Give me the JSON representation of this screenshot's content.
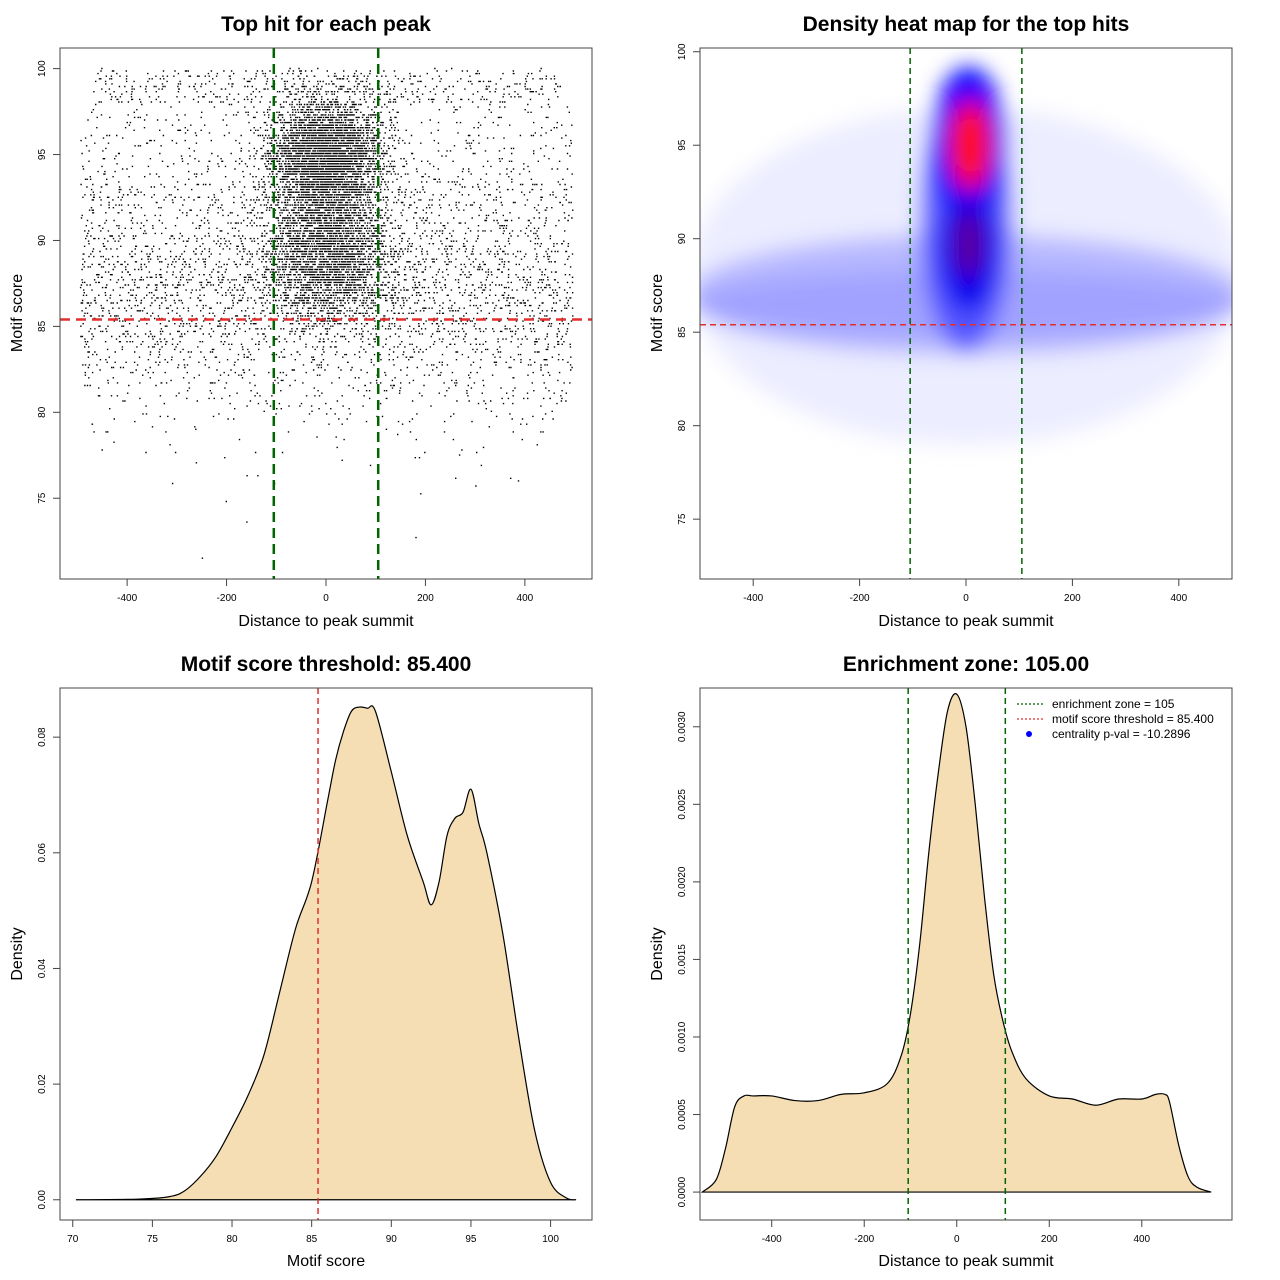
{
  "colors": {
    "threshold_line": "#e03030",
    "zone_line": "#006400",
    "density_fill": "#f5deb3",
    "points": "#000000",
    "heat_low": "#ffffff",
    "heat_mid": "#0000ff",
    "heat_high": "#ff0000",
    "legend_marker": "#0000ff"
  },
  "chart_data": [
    {
      "id": "scatter",
      "type": "scatter",
      "title": "Top hit for each peak",
      "xlabel": "Distance to peak summit",
      "ylabel": "Motif score",
      "xlim": [
        -535,
        535
      ],
      "ylim": [
        70.3,
        101.2
      ],
      "xticks": [
        -400,
        -200,
        0,
        200,
        400
      ],
      "yticks": [
        75,
        80,
        85,
        90,
        95,
        100
      ],
      "xtick_labels": [
        "-400",
        "-200",
        "0",
        "200",
        "400"
      ],
      "ytick_labels": [
        "75",
        "80",
        "85",
        "90",
        "95",
        "100"
      ],
      "threshold": 85.4,
      "enrichment_zone": [
        -105,
        105
      ],
      "grid": false
    },
    {
      "id": "heatmap",
      "type": "heatmap",
      "title": "Density heat map for the top hits",
      "xlabel": "Distance to peak summit",
      "ylabel": "Motif score",
      "xlim": [
        -500,
        500
      ],
      "ylim": [
        71.8,
        100.2
      ],
      "xticks": [
        -400,
        -200,
        0,
        200,
        400
      ],
      "yticks": [
        75,
        80,
        85,
        90,
        95,
        100
      ],
      "xtick_labels": [
        "-400",
        "-200",
        "0",
        "200",
        "400"
      ],
      "ytick_labels": [
        "75",
        "80",
        "85",
        "90",
        "95",
        "100"
      ],
      "threshold": 85.4,
      "enrichment_zone": [
        -105,
        105
      ],
      "grid": false
    },
    {
      "id": "score_density",
      "type": "area",
      "title": "Motif score threshold: 85.400",
      "xlabel": "Motif score",
      "ylabel": "Density",
      "xlim": [
        69.2,
        102.6
      ],
      "ylim": [
        -0.0035,
        0.0885
      ],
      "xticks": [
        70,
        75,
        80,
        85,
        90,
        95,
        100
      ],
      "yticks": [
        0,
        0.02,
        0.04,
        0.06,
        0.08
      ],
      "xtick_labels": [
        "70",
        "75",
        "80",
        "85",
        "90",
        "95",
        "100"
      ],
      "ytick_labels": [
        "0.00",
        "0.02",
        "0.04",
        "0.06",
        "0.08"
      ],
      "threshold": 85.4,
      "x": [
        70.2,
        74,
        76,
        77,
        78,
        79,
        80,
        81,
        82,
        83,
        84,
        85,
        86,
        86.5,
        87,
        87.5,
        88,
        88.5,
        89,
        90,
        91,
        92,
        92.5,
        93,
        93.5,
        94,
        94.5,
        95,
        95.5,
        96,
        97,
        98,
        99,
        100,
        101,
        101.6
      ],
      "y": [
        0.0,
        0.0001,
        0.0005,
        0.0015,
        0.004,
        0.0075,
        0.0125,
        0.018,
        0.025,
        0.036,
        0.047,
        0.055,
        0.069,
        0.076,
        0.081,
        0.0845,
        0.0852,
        0.085,
        0.0845,
        0.074,
        0.063,
        0.055,
        0.051,
        0.055,
        0.063,
        0.066,
        0.067,
        0.071,
        0.065,
        0.06,
        0.046,
        0.028,
        0.012,
        0.003,
        0.0003,
        0.0
      ]
    },
    {
      "id": "position_density",
      "type": "area",
      "title": "Enrichment zone: 105.00",
      "xlabel": "Distance to peak summit",
      "ylabel": "Density",
      "xlim": [
        -555,
        595
      ],
      "ylim": [
        -0.00018,
        0.00325
      ],
      "xticks": [
        -400,
        -200,
        0,
        200,
        400
      ],
      "yticks": [
        0,
        0.0005,
        0.001,
        0.0015,
        0.002,
        0.0025,
        0.003
      ],
      "xtick_labels": [
        "-400",
        "-200",
        "0",
        "200",
        "400"
      ],
      "ytick_labels": [
        "0.0000",
        "0.0005",
        "0.0010",
        "0.0015",
        "0.0020",
        "0.0025",
        "0.0030"
      ],
      "enrichment_zone": [
        -105,
        105
      ],
      "x": [
        -550,
        -520,
        -500,
        -480,
        -460,
        -440,
        -400,
        -350,
        -300,
        -250,
        -200,
        -150,
        -120,
        -100,
        -80,
        -60,
        -40,
        -20,
        0,
        20,
        40,
        60,
        80,
        100,
        120,
        150,
        200,
        250,
        300,
        350,
        400,
        430,
        450,
        460,
        480,
        500,
        520,
        550
      ],
      "y": [
        0.0,
        8e-05,
        0.00028,
        0.00055,
        0.00062,
        0.00062,
        0.00062,
        0.00059,
        0.00059,
        0.00063,
        0.00064,
        0.0007,
        0.00088,
        0.00115,
        0.0016,
        0.0022,
        0.0027,
        0.0031,
        0.00321,
        0.003,
        0.0025,
        0.0019,
        0.0014,
        0.0011,
        0.0009,
        0.00073,
        0.00062,
        0.0006,
        0.00056,
        0.0006,
        0.0006,
        0.00063,
        0.00063,
        0.00058,
        0.0003,
        0.0001,
        3e-05,
        0.0
      ],
      "legend": {
        "position": "top-right",
        "entries": [
          {
            "label": "enrichment zone = 105",
            "style": "dotted-line",
            "color": "#006400"
          },
          {
            "label": "motif score threshold = 85.400",
            "style": "dotted-line",
            "color": "#e03030"
          },
          {
            "label": "centrality p-val = -10.2896",
            "style": "point",
            "color": "#0000ff"
          }
        ]
      }
    }
  ]
}
